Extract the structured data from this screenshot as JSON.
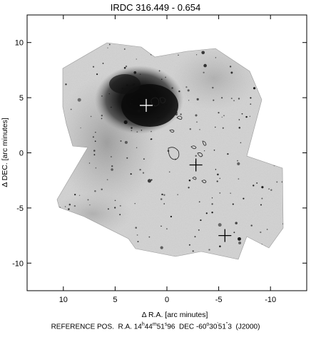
{
  "title": "IRDC 316.449 - 0.654",
  "chart_data": {
    "type": "image",
    "title": "IRDC 316.449 - 0.654",
    "xlabel": "Δ R.A. [arc minutes]",
    "ylabel": "Δ DEC. [arc minutes]",
    "x_range": [
      13.5,
      -13.5
    ],
    "y_range": [
      -12.5,
      12.5
    ],
    "x_ticks": [
      10,
      5,
      0,
      -5,
      -10
    ],
    "x_tick_labels": [
      "10",
      "5",
      "0",
      "-5",
      "-10"
    ],
    "y_ticks": [
      10,
      5,
      0,
      -5,
      -10
    ],
    "y_tick_labels": [
      "10",
      "5",
      "0",
      "-5",
      "-10"
    ],
    "image": "greyscale mid-infrared map (mosaic of fields) with a dark cloud near the top centre",
    "contours": "thin dark contours",
    "markers": [
      {
        "label": "+",
        "x": 2.0,
        "y": 4.3,
        "color": "#ffffff"
      },
      {
        "label": "+",
        "x": -2.8,
        "y": -1.1,
        "color": "#000000"
      },
      {
        "label": "+",
        "x": -5.6,
        "y": -7.5,
        "color": "#000000"
      }
    ],
    "grid": false,
    "legend": "none"
  },
  "refpos": {
    "prefix": "REFERENCE POS.",
    "ra_label": "R.A.",
    "ra_h": "14",
    "ra_h_unit": "h",
    "ra_m": "44",
    "ra_m_unit": "m",
    "ra_s": "51",
    "ra_s_unit": "s",
    "ra_s_frac": "96",
    "dec_label": "DEC",
    "dec_d": "-60",
    "dec_d_unit": "o",
    "dec_m": "30",
    "dec_m_unit": "'",
    "dec_s": "51",
    "dec_s_unit": "\"",
    "dec_s_frac": "3",
    "epoch": "(J2000)"
  }
}
